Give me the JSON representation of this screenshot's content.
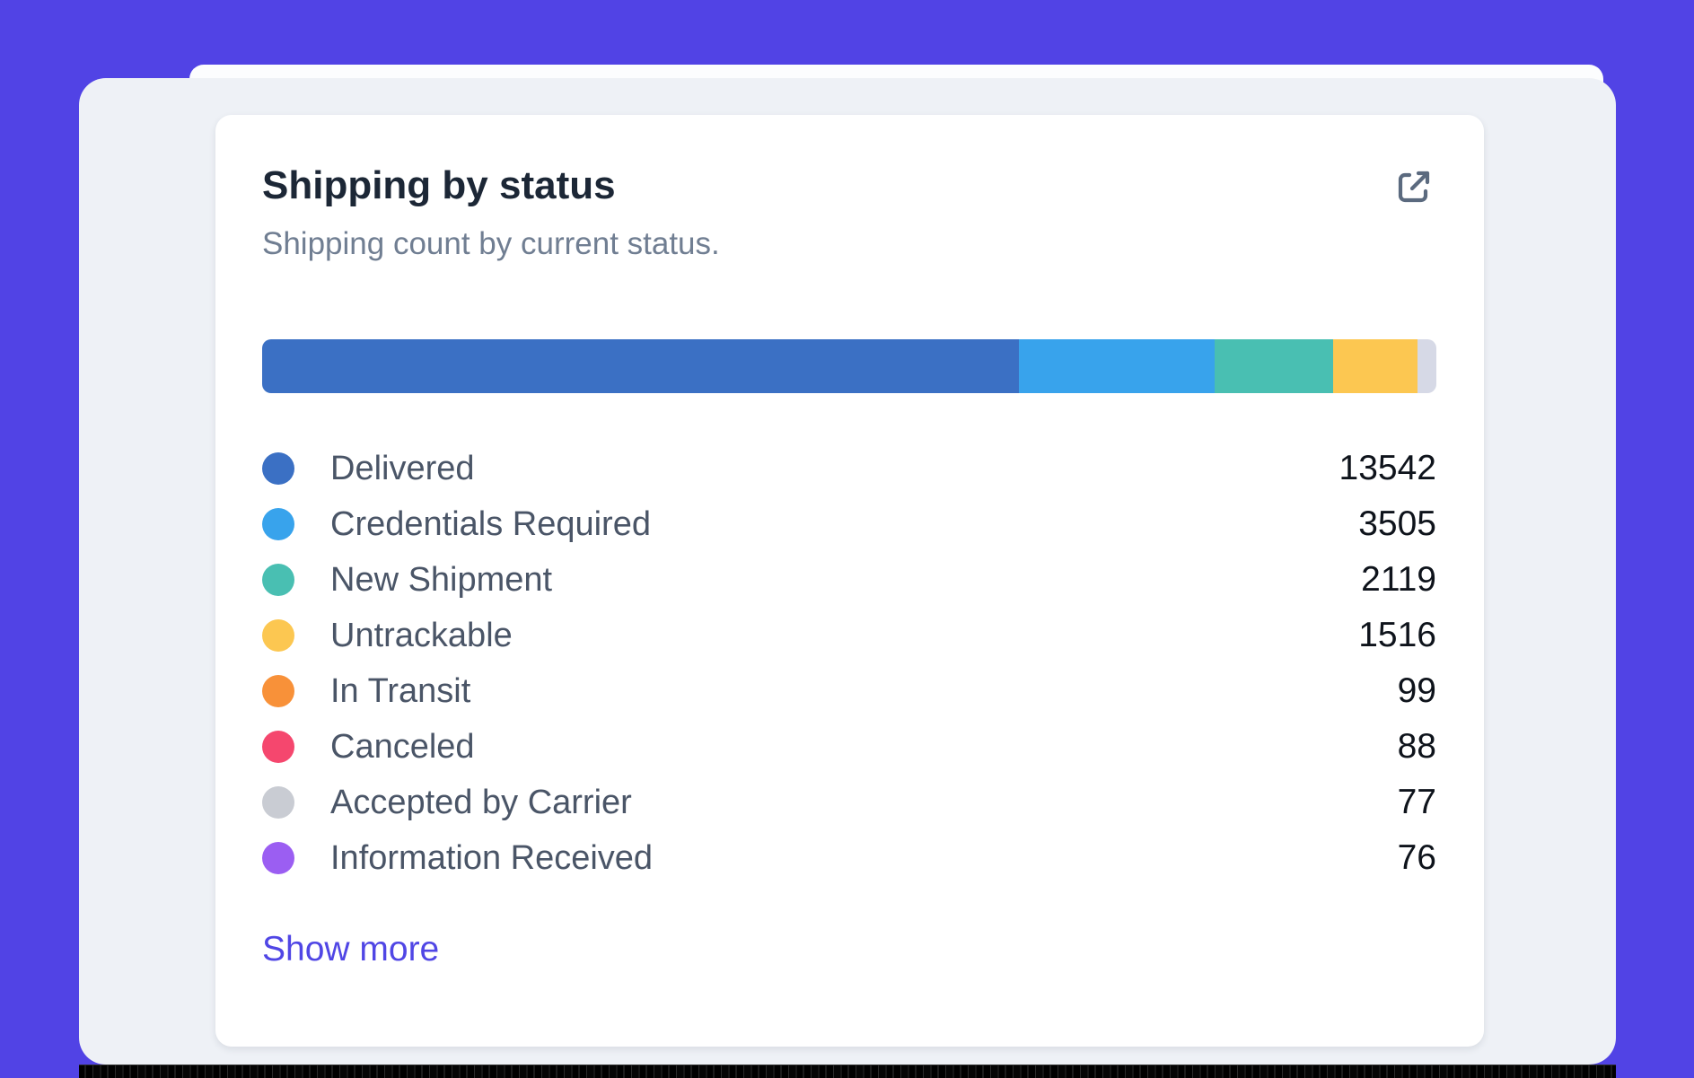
{
  "page": {
    "background_color": "#5143e5",
    "surface_color": "#eef1f6",
    "card_color": "#ffffff"
  },
  "header": {
    "title": "Shipping by status",
    "subtitle": "Shipping count by current status.",
    "expand_icon": "external-link-icon",
    "icon_color": "#5b6a7f"
  },
  "chart_data": {
    "type": "bar",
    "orientation": "horizontal-stacked",
    "title": "Shipping by status",
    "subtitle": "Shipping count by current status.",
    "categories": [
      "Delivered",
      "Credentials Required",
      "New Shipment",
      "Untrackable",
      "In Transit",
      "Canceled",
      "Accepted by Carrier",
      "Information Received"
    ],
    "values": [
      13542,
      3505,
      2119,
      1516,
      99,
      88,
      77,
      76
    ],
    "colors": [
      "#3b70c4",
      "#38a3ec",
      "#49bfb2",
      "#fcc751",
      "#f89139",
      "#f5476e",
      "#c9ccd3",
      "#9b5ef2"
    ],
    "total": 21022,
    "bar": {
      "visible_segments": 4,
      "remainder_color": "#d6d9e6"
    },
    "legend_position": "below",
    "values_format": "integer",
    "grid": false
  },
  "footer": {
    "show_more_label": "Show more",
    "link_color": "#5046e5"
  }
}
